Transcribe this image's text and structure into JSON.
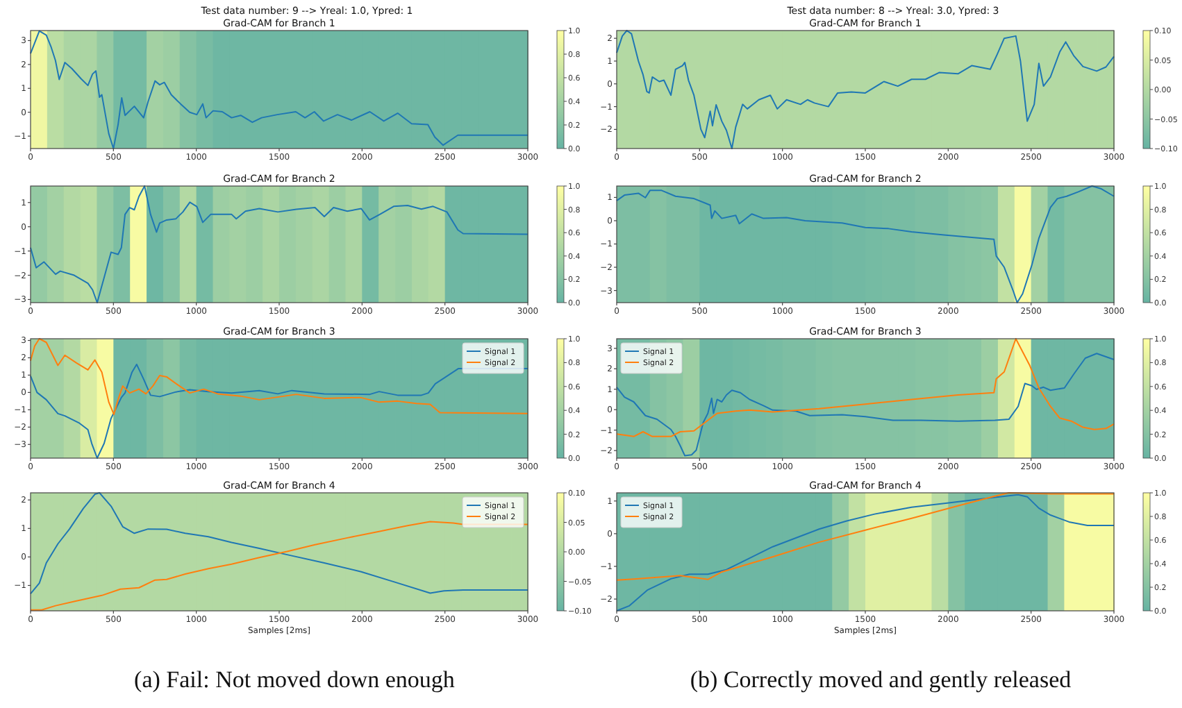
{
  "chart_data": [
    {
      "type": "heatmap",
      "title": "Grad-CAM for Branch 1",
      "annotations": [
        "Test data number: 9 --> Yreal: 1.0, Ypred: 1"
      ],
      "xlim": [
        0,
        3000
      ],
      "xticks": [
        0,
        500,
        1000,
        1500,
        2000,
        2500,
        3000
      ],
      "ylim": [
        -1.52,
        3.42
      ],
      "yticks": [
        -1,
        0,
        1,
        2,
        3
      ],
      "clim": [
        0,
        1
      ],
      "cticks": [
        {
          "value": 0,
          "label": "0.0"
        },
        {
          "value": 0.2,
          "label": "0.2"
        },
        {
          "value": 0.4,
          "label": "0.4"
        },
        {
          "value": 0.6,
          "label": "0.6"
        },
        {
          "value": 0.8,
          "label": "0.8"
        },
        {
          "value": 1,
          "label": "1.0"
        }
      ],
      "cells": [
        [
          0.9,
          0.55,
          0.45,
          0.45,
          0.3,
          0.1,
          0.1,
          0.4,
          0.35,
          0.2,
          0.12,
          0.05,
          0.05,
          0.05,
          0.05,
          0.05,
          0.05,
          0.05,
          0.05,
          0.05,
          0.05,
          0.05,
          0.05,
          0.05,
          0.05,
          0.05,
          0.05,
          0.05,
          0.05,
          0.05
        ]
      ],
      "series": [
        {
          "type": "line",
          "color": "#1f77b4",
          "x": [
            0,
            53,
            95,
            123,
            150,
            173,
            207,
            249,
            305,
            346,
            374,
            394,
            416,
            430,
            472,
            500,
            528,
            550,
            570,
            626,
            682,
            709,
            751,
            779,
            807,
            849,
            905,
            960,
            1003,
            1039,
            1059,
            1101,
            1157,
            1213,
            1268,
            1338,
            1394,
            1489,
            1600,
            1656,
            1712,
            1768,
            1852,
            1936,
            2047,
            2131,
            2215,
            2299,
            2397,
            2439,
            2489,
            2578,
            3000
          ],
          "values": [
            2.46,
            3.4,
            3.23,
            2.75,
            2.17,
            1.37,
            2.08,
            1.83,
            1.4,
            1.12,
            1.6,
            1.73,
            0.63,
            0.73,
            -0.9,
            -1.52,
            -0.52,
            0.6,
            -0.13,
            0.25,
            -0.23,
            0.44,
            1.31,
            1.15,
            1.25,
            0.73,
            0.35,
            0,
            -0.1,
            0.35,
            -0.23,
            0.06,
            0.02,
            -0.23,
            -0.13,
            -0.42,
            -0.23,
            -0.1,
            0.02,
            -0.23,
            0.02,
            -0.37,
            -0.1,
            -0.33,
            0.02,
            -0.37,
            -0.04,
            -0.48,
            -0.52,
            -1.04,
            -1.38,
            -0.96,
            -0.96
          ]
        }
      ]
    },
    {
      "type": "heatmap",
      "title": "Grad-CAM for Branch 2",
      "xlim": [
        0,
        3000
      ],
      "xticks": [
        0,
        500,
        1000,
        1500,
        2000,
        2500,
        3000
      ],
      "ylim": [
        -3.13,
        1.68
      ],
      "yticks": [
        -3,
        -2,
        -1,
        0,
        1
      ],
      "clim": [
        0,
        1
      ],
      "cticks": [
        {
          "value": 0,
          "label": "0.0"
        },
        {
          "value": 0.2,
          "label": "0.2"
        },
        {
          "value": 0.4,
          "label": "0.4"
        },
        {
          "value": 0.6,
          "label": "0.6"
        },
        {
          "value": 0.8,
          "label": "0.8"
        },
        {
          "value": 1,
          "label": "1.0"
        }
      ],
      "cells": [
        [
          0.3,
          0.4,
          0.5,
          0.55,
          0.3,
          0.15,
          0.95,
          0.05,
          0.2,
          0.5,
          0.1,
          0.35,
          0.4,
          0.35,
          0.45,
          0.35,
          0.4,
          0.45,
          0.35,
          0.45,
          0.1,
          0.4,
          0.35,
          0.45,
          0.5,
          0.05,
          0.05,
          0.05,
          0.05,
          0.05
        ]
      ],
      "series": [
        {
          "type": "line",
          "color": "#1f77b4",
          "x": [
            0,
            34,
            81,
            151,
            179,
            263,
            346,
            374,
            402,
            444,
            486,
            528,
            548,
            570,
            598,
            626,
            654,
            688,
            724,
            760,
            779,
            821,
            877,
            919,
            961,
            1003,
            1039,
            1087,
            1213,
            1241,
            1297,
            1380,
            1492,
            1604,
            1716,
            1772,
            1828,
            1911,
            1995,
            2045,
            2107,
            2191,
            2275,
            2358,
            2428,
            2512,
            2578,
            2610,
            3000
          ],
          "values": [
            -0.86,
            -1.69,
            -1.45,
            -1.96,
            -1.83,
            -2.0,
            -2.33,
            -2.6,
            -3.13,
            -2.09,
            -1.05,
            -1.14,
            -0.86,
            0.51,
            0.79,
            0.7,
            1.25,
            1.68,
            0.51,
            -0.22,
            0.15,
            0.28,
            0.33,
            0.61,
            1.01,
            0.83,
            0.18,
            0.51,
            0.51,
            0.33,
            0.64,
            0.75,
            0.61,
            0.72,
            0.79,
            0.42,
            0.79,
            0.64,
            0.75,
            0.28,
            0.51,
            0.84,
            0.88,
            0.73,
            0.84,
            0.61,
            -0.13,
            -0.28,
            -0.31
          ]
        }
      ]
    },
    {
      "type": "heatmap",
      "title": "Grad-CAM for Branch 3",
      "legend": "top right",
      "xlim": [
        0,
        3000
      ],
      "xticks": [
        0,
        500,
        1000,
        1500,
        2000,
        2500,
        3000
      ],
      "ylim": [
        -3.79,
        3.1
      ],
      "yticks": [
        -3,
        -2,
        -1,
        0,
        1,
        2,
        3
      ],
      "clim": [
        0,
        1
      ],
      "cticks": [
        {
          "value": 0,
          "label": "0.0"
        },
        {
          "value": 0.2,
          "label": "0.2"
        },
        {
          "value": 0.4,
          "label": "0.4"
        },
        {
          "value": 0.6,
          "label": "0.6"
        },
        {
          "value": 0.8,
          "label": "0.8"
        },
        {
          "value": 1,
          "label": "1.0"
        }
      ],
      "cells": [
        [
          0.4,
          0.4,
          0.5,
          0.75,
          0.95,
          0.05,
          0.05,
          0.15,
          0.25,
          0.1,
          0.05,
          0.05,
          0.05,
          0.05,
          0.05,
          0.05,
          0.05,
          0.05,
          0.05,
          0.05,
          0.05,
          0.05,
          0.05,
          0.05,
          0.05,
          0.05,
          0.05,
          0.05,
          0.05,
          0.05
        ]
      ],
      "series": [
        {
          "type": "line",
          "name": "Signal 1",
          "color": "#1f77b4",
          "x": [
            0,
            39,
            95,
            165,
            207,
            291,
            346,
            369,
            402,
            444,
            486,
            514,
            548,
            570,
            612,
            640,
            682,
            724,
            779,
            877,
            961,
            1073,
            1213,
            1380,
            1492,
            1576,
            1772,
            2047,
            2103,
            2215,
            2358,
            2400,
            2442,
            2498,
            2582,
            3000
          ],
          "values": [
            0.95,
            0,
            -0.42,
            -1.22,
            -1.35,
            -1.75,
            -2.15,
            -2.94,
            -3.79,
            -2.94,
            -1.49,
            -0.95,
            -0.29,
            -0.03,
            1.17,
            1.62,
            0.77,
            -0.16,
            -0.24,
            0.03,
            0.16,
            0.05,
            -0.03,
            0.11,
            -0.08,
            0.11,
            -0.08,
            -0.11,
            0.05,
            -0.16,
            -0.16,
            -0.03,
            0.5,
            0.85,
            1.38,
            1.38
          ]
        },
        {
          "type": "line",
          "name": "Signal 2",
          "color": "#ff7f0e",
          "x": [
            0,
            25,
            53,
            95,
            165,
            207,
            277,
            346,
            388,
            430,
            472,
            503,
            528,
            556,
            598,
            654,
            696,
            738,
            779,
            821,
            891,
            961,
            1045,
            1129,
            1268,
            1380,
            1604,
            1772,
            1990,
            2103,
            2215,
            2327,
            2411,
            2470,
            3000
          ],
          "values": [
            1.83,
            2.68,
            3.1,
            2.89,
            1.56,
            2.15,
            1.7,
            1.3,
            1.88,
            1.17,
            -0.56,
            -1.27,
            -0.42,
            0.37,
            -0.03,
            0.19,
            -0.08,
            0.37,
            0.98,
            0.9,
            0.42,
            -0.03,
            0.19,
            -0.08,
            -0.21,
            -0.42,
            -0.11,
            -0.34,
            -0.29,
            -0.56,
            -0.5,
            -0.64,
            -0.69,
            -1.17,
            -1.22
          ]
        }
      ]
    },
    {
      "type": "heatmap",
      "title": "Grad-CAM for Branch 4",
      "xlabel": "Samples [2ms]",
      "legend": "top right",
      "annotations": [
        "(a) Fail: Not moved down enough"
      ],
      "xlim": [
        0,
        3000
      ],
      "xticks": [
        0,
        500,
        1000,
        1500,
        2000,
        2500,
        3000
      ],
      "ylim": [
        -1.89,
        2.25
      ],
      "yticks": [
        -1,
        0,
        1,
        2
      ],
      "clim": [
        -0.1,
        0.1
      ],
      "cticks": [
        {
          "value": -0.1,
          "label": "−0.10"
        },
        {
          "value": -0.05,
          "label": "−0.05"
        },
        {
          "value": 0,
          "label": "0.00"
        },
        {
          "value": 0.05,
          "label": "0.05"
        },
        {
          "value": 0.1,
          "label": "0.10"
        }
      ],
      "cells": [
        [
          0,
          0,
          0,
          0,
          0,
          0,
          0,
          0,
          0,
          0,
          0,
          0,
          0,
          0,
          0,
          0,
          0,
          0,
          0,
          0,
          0,
          0,
          0,
          0,
          0,
          0,
          0,
          0,
          0,
          0
        ]
      ],
      "series": [
        {
          "type": "line",
          "name": "Signal 1",
          "color": "#1f77b4",
          "x": [
            0,
            53,
            95,
            165,
            235,
            318,
            388,
            416,
            486,
            556,
            626,
            709,
            821,
            933,
            1073,
            1213,
            1380,
            1548,
            1772,
            1995,
            2191,
            2411,
            2494,
            2610,
            3000
          ],
          "values": [
            -1.29,
            -0.92,
            -0.21,
            0.46,
            0.98,
            1.7,
            2.2,
            2.25,
            1.78,
            1.06,
            0.83,
            0.98,
            0.97,
            0.83,
            0.71,
            0.51,
            0.3,
            0.08,
            -0.21,
            -0.52,
            -0.87,
            -1.27,
            -1.19,
            -1.16,
            -1.16
          ]
        },
        {
          "type": "line",
          "name": "Signal 2",
          "color": "#ff7f0e",
          "x": [
            0,
            67,
            151,
            263,
            430,
            542,
            654,
            751,
            821,
            933,
            1073,
            1213,
            1380,
            1548,
            1716,
            1911,
            2107,
            2275,
            2411,
            2550,
            2610,
            3000
          ],
          "values": [
            -1.86,
            -1.86,
            -1.71,
            -1.56,
            -1.35,
            -1.13,
            -1.08,
            -0.81,
            -0.79,
            -0.6,
            -0.41,
            -0.25,
            -0.02,
            0.19,
            0.43,
            0.67,
            0.9,
            1.1,
            1.24,
            1.19,
            1.14,
            1.14
          ]
        }
      ]
    },
    {
      "type": "heatmap",
      "title": "Grad-CAM for Branch 1",
      "annotations": [
        "Test data number: 8 --> Yreal: 3.0, Ypred: 3"
      ],
      "xlim": [
        0,
        3000
      ],
      "xticks": [
        0,
        500,
        1000,
        1500,
        2000,
        2500,
        3000
      ],
      "ylim": [
        -2.84,
        2.34
      ],
      "yticks": [
        -2,
        -1,
        0,
        1,
        2
      ],
      "clim": [
        -0.1,
        0.1
      ],
      "cticks": [
        {
          "value": -0.1,
          "label": "−0.10"
        },
        {
          "value": -0.05,
          "label": "−0.05"
        },
        {
          "value": 0,
          "label": "0.00"
        },
        {
          "value": 0.05,
          "label": "0.05"
        },
        {
          "value": 0.1,
          "label": "0.10"
        }
      ],
      "cells": [
        [
          0,
          0,
          0,
          0,
          0,
          0,
          0,
          0,
          0,
          0,
          0,
          0,
          0,
          0,
          0,
          0,
          0,
          0,
          0,
          0,
          0,
          0,
          0,
          0,
          0,
          0,
          0,
          0,
          0,
          0
        ]
      ],
      "series": [
        {
          "type": "line",
          "color": "#1f77b4",
          "x": [
            0,
            34,
            61,
            89,
            131,
            159,
            182,
            196,
            215,
            257,
            285,
            327,
            355,
            397,
            411,
            433,
            466,
            508,
            531,
            564,
            578,
            600,
            634,
            662,
            695,
            718,
            760,
            788,
            857,
            927,
            969,
            1025,
            1109,
            1151,
            1193,
            1277,
            1333,
            1416,
            1500,
            1612,
            1696,
            1779,
            1863,
            1947,
            2059,
            2142,
            2254,
            2296,
            2338,
            2408,
            2436,
            2477,
            2519,
            2547,
            2575,
            2617,
            2673,
            2709,
            2757,
            2813,
            2896,
            2952,
            3000
          ],
          "values": [
            1.36,
            2.1,
            2.34,
            2.2,
            1.0,
            0.4,
            -0.34,
            -0.4,
            0.3,
            0.1,
            0.16,
            -0.5,
            0.64,
            0.8,
            0.94,
            0.16,
            -0.5,
            -2.0,
            -2.36,
            -1.2,
            -1.84,
            -0.92,
            -1.64,
            -2.04,
            -2.84,
            -1.9,
            -0.9,
            -1.1,
            -0.7,
            -0.5,
            -1.1,
            -0.7,
            -0.9,
            -0.7,
            -0.84,
            -1.0,
            -0.4,
            -0.36,
            -0.4,
            0.1,
            -0.1,
            0.2,
            0.2,
            0.5,
            0.44,
            0.8,
            0.64,
            1.3,
            2.0,
            2.1,
            1.0,
            -1.64,
            -0.9,
            0.9,
            -0.1,
            0.3,
            1.4,
            1.84,
            1.24,
            0.76,
            0.56,
            0.74,
            1.2
          ]
        }
      ]
    },
    {
      "type": "heatmap",
      "title": "Grad-CAM for Branch 2",
      "xlim": [
        0,
        3000
      ],
      "xticks": [
        0,
        500,
        1000,
        1500,
        2000,
        2500,
        3000
      ],
      "ylim": [
        -3.52,
        1.49
      ],
      "yticks": [
        -3,
        -2,
        -1,
        0,
        1
      ],
      "clim": [
        0,
        1
      ],
      "cticks": [
        {
          "value": 0,
          "label": "0.0"
        },
        {
          "value": 0.2,
          "label": "0.2"
        },
        {
          "value": 0.4,
          "label": "0.4"
        },
        {
          "value": 0.6,
          "label": "0.6"
        },
        {
          "value": 0.8,
          "label": "0.8"
        },
        {
          "value": 1,
          "label": "1.0"
        }
      ],
      "cells": [
        [
          0.15,
          0.15,
          0.2,
          0.15,
          0.15,
          0.05,
          0.05,
          0.05,
          0.05,
          0.05,
          0.05,
          0.05,
          0.05,
          0.08,
          0.08,
          0.1,
          0.12,
          0.12,
          0.15,
          0.15,
          0.2,
          0.22,
          0.25,
          0.6,
          0.95,
          0.4,
          0.1,
          0.2,
          0.2,
          0.2
        ]
      ],
      "series": [
        {
          "type": "line",
          "color": "#1f77b4",
          "x": [
            0,
            47,
            131,
            173,
            201,
            271,
            355,
            466,
            564,
            573,
            592,
            634,
            718,
            740,
            815,
            885,
            1025,
            1137,
            1360,
            1500,
            1640,
            1779,
            1975,
            2142,
            2276,
            2290,
            2338,
            2394,
            2416,
            2449,
            2505,
            2547,
            2617,
            2659,
            2715,
            2785,
            2868,
            2924,
            3000
          ],
          "values": [
            0.86,
            1.1,
            1.18,
            0.99,
            1.3,
            1.3,
            1.05,
            0.95,
            0.67,
            0.1,
            0.42,
            0.1,
            0.23,
            -0.13,
            0.29,
            0.1,
            0.13,
            0,
            -0.1,
            -0.29,
            -0.34,
            -0.48,
            -0.61,
            -0.72,
            -0.8,
            -1.52,
            -2.0,
            -3.05,
            -3.52,
            -3.14,
            -1.9,
            -0.76,
            0.57,
            0.95,
            1.05,
            1.24,
            1.49,
            1.37,
            1.05
          ]
        }
      ]
    },
    {
      "type": "heatmap",
      "title": "Grad-CAM for Branch 3",
      "legend": "top left",
      "xlim": [
        0,
        3000
      ],
      "xticks": [
        0,
        500,
        1000,
        1500,
        2000,
        2500,
        3000
      ],
      "ylim": [
        -2.37,
        3.47
      ],
      "yticks": [
        -2,
        -1,
        0,
        1,
        2,
        3
      ],
      "clim": [
        0,
        1
      ],
      "cticks": [
        {
          "value": 0,
          "label": "0.0"
        },
        {
          "value": 0.2,
          "label": "0.2"
        },
        {
          "value": 0.4,
          "label": "0.4"
        },
        {
          "value": 0.6,
          "label": "0.6"
        },
        {
          "value": 0.8,
          "label": "0.8"
        },
        {
          "value": 1,
          "label": "1.0"
        }
      ],
      "cells": [
        [
          0.1,
          0.1,
          0.2,
          0.25,
          0.35,
          0.05,
          0.05,
          0.08,
          0.1,
          0.12,
          0.15,
          0.15,
          0.18,
          0.2,
          0.2,
          0.2,
          0.2,
          0.2,
          0.22,
          0.22,
          0.25,
          0.25,
          0.35,
          0.7,
          0.95,
          0.05,
          0.05,
          0.05,
          0.05,
          0.05
        ]
      ],
      "series": [
        {
          "type": "line",
          "name": "Signal 1",
          "color": "#1f77b4",
          "x": [
            0,
            47,
            103,
            173,
            243,
            327,
            355,
            383,
            411,
            452,
            480,
            522,
            550,
            573,
            584,
            606,
            634,
            662,
            695,
            746,
            802,
            885,
            941,
            1081,
            1165,
            1360,
            1500,
            1667,
            1835,
            2059,
            2282,
            2366,
            2422,
            2463,
            2505,
            2533,
            2575,
            2617,
            2701,
            2757,
            2827,
            2896,
            3000
          ],
          "values": [
            1.1,
            0.61,
            0.38,
            -0.29,
            -0.47,
            -0.97,
            -1.31,
            -1.76,
            -2.25,
            -2.21,
            -1.98,
            -0.63,
            -0.18,
            0.56,
            -0.18,
            0.5,
            0.38,
            0.72,
            0.95,
            0.83,
            0.5,
            0.2,
            -0.02,
            -0.07,
            -0.29,
            -0.25,
            -0.34,
            -0.52,
            -0.52,
            -0.56,
            -0.52,
            -0.47,
            0.16,
            1.28,
            1.17,
            0.99,
            1.1,
            0.95,
            1.06,
            1.73,
            2.52,
            2.75,
            2.45
          ]
        },
        {
          "type": "line",
          "name": "Signal 2",
          "color": "#ff7f0e",
          "x": [
            0,
            103,
            159,
            215,
            327,
            383,
            466,
            550,
            606,
            718,
            802,
            941,
            1221,
            1500,
            1779,
            2059,
            2276,
            2290,
            2338,
            2408,
            2491,
            2547,
            2617,
            2673,
            2743,
            2813,
            2882,
            2952,
            3000
          ],
          "values": [
            -1.19,
            -1.31,
            -1.08,
            -1.31,
            -1.31,
            -1.08,
            -1.04,
            -0.52,
            -0.18,
            -0.07,
            -0.02,
            -0.11,
            0.05,
            0.27,
            0.5,
            0.72,
            0.83,
            1.51,
            1.85,
            3.47,
            2.18,
            1.06,
            0.16,
            -0.41,
            -0.56,
            -0.86,
            -0.97,
            -0.92,
            -0.7
          ]
        }
      ]
    },
    {
      "type": "heatmap",
      "title": "Grad-CAM for Branch 4",
      "xlabel": "Samples [2ms]",
      "legend": "top left",
      "annotations": [
        "(b) Correctly moved and gently released"
      ],
      "xlim": [
        0,
        3000
      ],
      "xticks": [
        0,
        500,
        1000,
        1500,
        2000,
        2500,
        3000
      ],
      "ylim": [
        -2.36,
        1.25
      ],
      "yticks": [
        -2,
        -1,
        0,
        1
      ],
      "clim": [
        0,
        1
      ],
      "cticks": [
        {
          "value": 0,
          "label": "0.0"
        },
        {
          "value": 0.2,
          "label": "0.2"
        },
        {
          "value": 0.4,
          "label": "0.4"
        },
        {
          "value": 0.6,
          "label": "0.6"
        },
        {
          "value": 0.8,
          "label": "0.8"
        },
        {
          "value": 1,
          "label": "1.0"
        }
      ],
      "cells": [
        [
          0.05,
          0.05,
          0.05,
          0.05,
          0.05,
          0.05,
          0.05,
          0.05,
          0.05,
          0.05,
          0.05,
          0.05,
          0.05,
          0.3,
          0.6,
          0.8,
          0.8,
          0.8,
          0.8,
          0.55,
          0.2,
          0.05,
          0.05,
          0.05,
          0.05,
          0.05,
          0.4,
          0.95,
          0.95,
          0.95
        ]
      ],
      "series": [
        {
          "type": "line",
          "name": "Signal 1",
          "color": "#1f77b4",
          "x": [
            0,
            75,
            187,
            327,
            439,
            550,
            662,
            802,
            941,
            1081,
            1221,
            1388,
            1556,
            1779,
            2003,
            2226,
            2422,
            2477,
            2547,
            2617,
            2729,
            2840,
            3000
          ],
          "values": [
            -2.36,
            -2.21,
            -1.72,
            -1.38,
            -1.24,
            -1.24,
            -1.1,
            -0.75,
            -0.4,
            -0.13,
            0.14,
            0.39,
            0.6,
            0.81,
            0.94,
            1.08,
            1.19,
            1.13,
            0.78,
            0.57,
            0.36,
            0.25,
            0.25
          ]
        },
        {
          "type": "line",
          "name": "Signal 2",
          "color": "#ff7f0e",
          "x": [
            0,
            103,
            383,
            550,
            634,
            941,
            1221,
            1500,
            1779,
            2059,
            2282,
            2366,
            2617,
            3000
          ],
          "values": [
            -1.42,
            -1.39,
            -1.28,
            -1.4,
            -1.17,
            -0.71,
            -0.26,
            0.11,
            0.47,
            0.85,
            1.15,
            1.25,
            1.22,
            1.22
          ]
        }
      ]
    }
  ]
}
